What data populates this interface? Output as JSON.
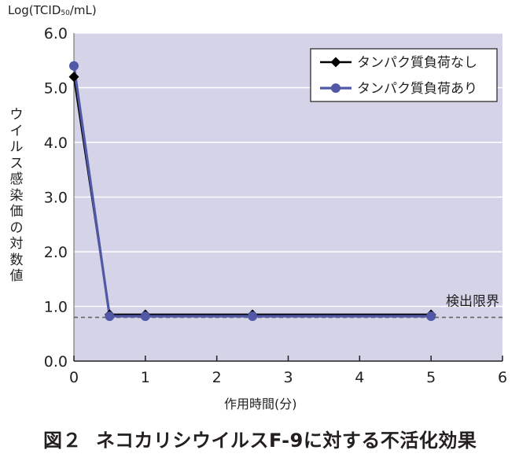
{
  "chart_data": {
    "type": "line",
    "unit_label_prefix": "Log(TCID",
    "unit_label_sub": "50",
    "unit_label_suffix": "/mL)",
    "ylabel": "ウイルス感染価の対数値",
    "xlabel": "作用時間(分)",
    "xlim": [
      0,
      6
    ],
    "ylim": [
      0.0,
      6.0
    ],
    "x_ticks": [
      "0",
      "1",
      "2",
      "3",
      "4",
      "5",
      "6"
    ],
    "y_ticks": [
      "0.0",
      "1.0",
      "2.0",
      "3.0",
      "4.0",
      "5.0",
      "6.0"
    ],
    "grid": "horizontal",
    "legend_position": "top-right",
    "detection_limit": {
      "value": 0.8,
      "label": "検出限界"
    },
    "series": [
      {
        "name": "タンパク質負荷なし",
        "color": "#000000",
        "marker": "diamond",
        "x": [
          0,
          0.5,
          1,
          2.5,
          5
        ],
        "y": [
          5.2,
          0.85,
          0.85,
          0.85,
          0.85
        ]
      },
      {
        "name": "タンパク質負荷あり",
        "color": "#5159a6",
        "marker": "circle",
        "x": [
          0,
          0.5,
          1,
          2.5,
          5
        ],
        "y": [
          5.4,
          0.82,
          0.82,
          0.82,
          0.82
        ]
      }
    ],
    "colors": {
      "plot_background": "#d4d3e8",
      "grid": "#ffffff"
    }
  },
  "caption": {
    "figure_number": "図２",
    "title": "ネコカリシウイルスF-9に対する不活化効果"
  }
}
